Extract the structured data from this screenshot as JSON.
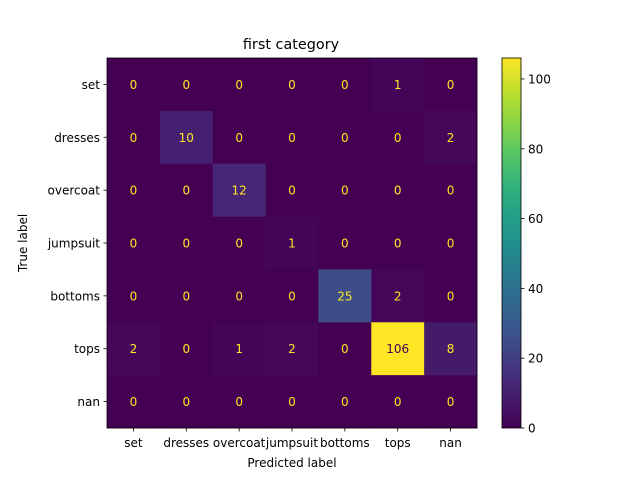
{
  "chart_data": {
    "type": "heatmap",
    "title": "first category",
    "xlabel": "Predicted label",
    "ylabel": "True label",
    "x_categories": [
      "set",
      "dresses",
      "overcoat",
      "jumpsuit",
      "bottoms",
      "tops",
      "nan"
    ],
    "y_categories": [
      "set",
      "dresses",
      "overcoat",
      "jumpsuit",
      "bottoms",
      "tops",
      "nan"
    ],
    "matrix": [
      [
        0,
        0,
        0,
        0,
        0,
        1,
        0
      ],
      [
        0,
        10,
        0,
        0,
        0,
        0,
        2
      ],
      [
        0,
        0,
        12,
        0,
        0,
        0,
        0
      ],
      [
        0,
        0,
        0,
        1,
        0,
        0,
        0
      ],
      [
        0,
        0,
        0,
        0,
        25,
        2,
        0
      ],
      [
        2,
        0,
        1,
        2,
        0,
        106,
        8
      ],
      [
        0,
        0,
        0,
        0,
        0,
        0,
        0
      ]
    ],
    "colormap": "viridis",
    "colorbar": {
      "range": [
        0,
        106
      ],
      "ticks": [
        0,
        20,
        40,
        60,
        80,
        100
      ]
    },
    "grid": false
  }
}
